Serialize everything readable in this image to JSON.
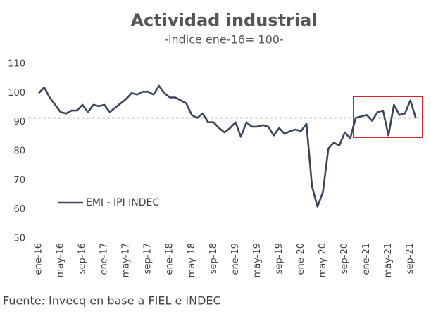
{
  "chart_data": {
    "type": "line",
    "title": "Actividad industrial",
    "subtitle": "-indice ene-16= 100-",
    "source": "Fuente: Invecq en base a FIEL e INDEC",
    "categories": [
      "ene-16",
      null,
      null,
      null,
      "may-16",
      null,
      null,
      null,
      "sep-16",
      null,
      null,
      null,
      "ene-17",
      null,
      null,
      null,
      "may-17",
      null,
      null,
      null,
      "sep-17",
      null,
      null,
      null,
      "ene-18",
      null,
      null,
      null,
      "may-18",
      null,
      null,
      null,
      "sep-18",
      null,
      null,
      null,
      "ene-19",
      null,
      null,
      null,
      "may-19",
      null,
      null,
      null,
      "sep-19",
      null,
      null,
      null,
      "ene-20",
      null,
      null,
      null,
      "may-20",
      null,
      null,
      null,
      "sep-20",
      null,
      null,
      null,
      "ene-21",
      null,
      null,
      null,
      "may-21",
      null,
      null,
      null,
      "sep-21",
      null
    ],
    "series": [
      {
        "name": "EMI - IPI INDEC",
        "color": "#3b4659",
        "values": [
          100,
          102,
          98.5,
          96,
          93.5,
          93,
          94,
          94,
          96,
          93.5,
          96,
          95.5,
          96,
          93.5,
          95,
          96.5,
          98,
          100,
          99.5,
          100.5,
          100.5,
          99.5,
          102.5,
          100,
          98.5,
          98.5,
          97.5,
          96.5,
          92.5,
          91.5,
          93,
          90,
          90,
          88,
          86.5,
          88,
          90,
          85,
          90,
          88.5,
          88.5,
          89,
          88.5,
          85.5,
          88,
          86,
          87,
          87.5,
          87,
          89.5,
          68,
          61,
          66,
          81,
          83,
          82,
          86.5,
          84.5,
          91.5,
          92,
          92.5,
          90.5,
          93.5,
          94,
          85.5,
          96,
          92.5,
          93,
          97.5,
          91.5
        ]
      }
    ],
    "reference_line": 91.5,
    "ylim": [
      50,
      110
    ],
    "yticks": [
      50,
      60,
      70,
      80,
      90,
      100,
      110
    ],
    "grid": false
  }
}
